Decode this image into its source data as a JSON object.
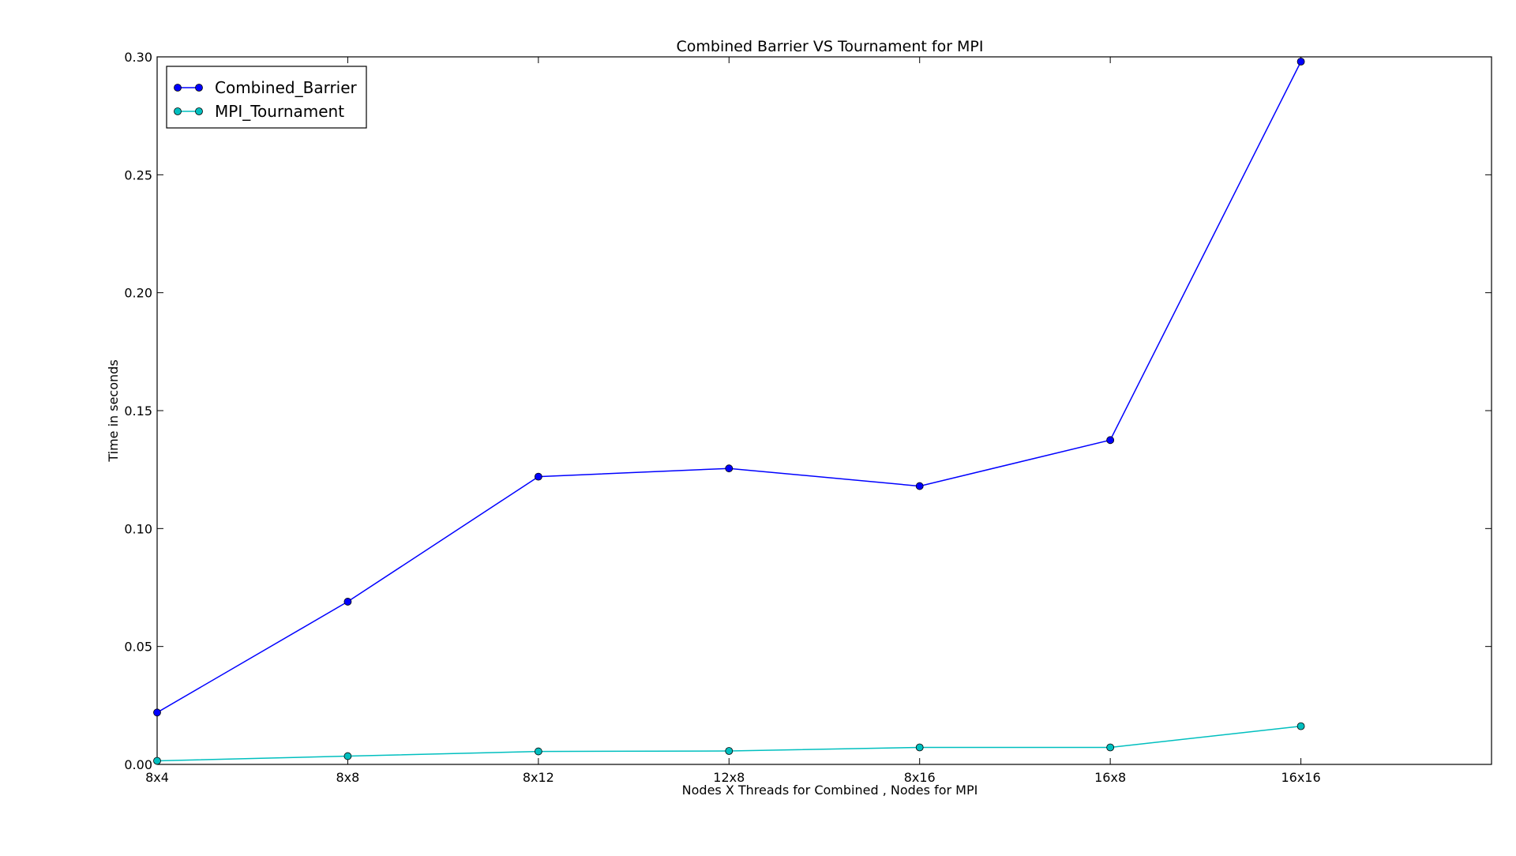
{
  "chart_data": {
    "type": "line",
    "title": "Combined Barrier VS Tournament for MPI",
    "xlabel": "Nodes X Threads for Combined , Nodes for MPI",
    "ylabel": "Time in seconds",
    "categories": [
      "8x4",
      "8x8",
      "8x12",
      "12x8",
      "8x16",
      "16x8",
      "16x16"
    ],
    "xlim": [
      0,
      7
    ],
    "ylim": [
      0.0,
      0.3
    ],
    "yticks": [
      "0.00",
      "0.05",
      "0.10",
      "0.15",
      "0.20",
      "0.25",
      "0.30"
    ],
    "grid": false,
    "legend_position": "top-left",
    "series": [
      {
        "name": "Combined_Barrier",
        "color": "#0000ff",
        "values": [
          0.022,
          0.069,
          0.122,
          0.1255,
          0.118,
          0.1375,
          0.298
        ]
      },
      {
        "name": "MPI_Tournament",
        "color": "#00bfbf",
        "values": [
          0.0015,
          0.0035,
          0.0055,
          0.0057,
          0.0072,
          0.0072,
          0.0162
        ]
      }
    ]
  }
}
